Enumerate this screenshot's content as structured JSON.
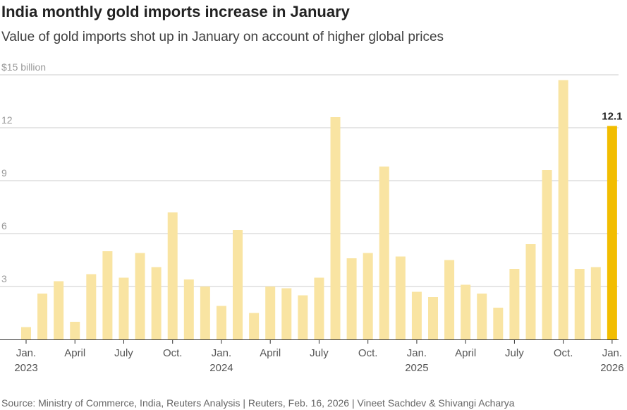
{
  "header": {
    "title": "India monthly gold imports increase in January",
    "subtitle": "Value of gold imports shot up in January on account of higher global prices"
  },
  "chart_data": {
    "type": "bar",
    "title": "India monthly gold imports increase in January",
    "subtitle": "Value of gold imports shot up in January on account of higher global prices",
    "unit_label": "$15 billion",
    "ylim": [
      0,
      15
    ],
    "yticks": [
      {
        "value": 15,
        "label": "$15 billion"
      },
      {
        "value": 12,
        "label": "12"
      },
      {
        "value": 9,
        "label": "9"
      },
      {
        "value": 6,
        "label": "6"
      },
      {
        "value": 3,
        "label": "3"
      }
    ],
    "grid": true,
    "categories": [
      "2023-01",
      "2023-02",
      "2023-03",
      "2023-04",
      "2023-05",
      "2023-06",
      "2023-07",
      "2023-08",
      "2023-09",
      "2023-10",
      "2023-11",
      "2023-12",
      "2024-01",
      "2024-02",
      "2024-03",
      "2024-04",
      "2024-05",
      "2024-06",
      "2024-07",
      "2024-08",
      "2024-09",
      "2024-10",
      "2024-11",
      "2024-12",
      "2025-01",
      "2025-02",
      "2025-03",
      "2025-04",
      "2025-05",
      "2025-06",
      "2025-07",
      "2025-08",
      "2025-09",
      "2025-10",
      "2025-11",
      "2025-12",
      "2026-01"
    ],
    "values": [
      0.7,
      2.6,
      3.3,
      1.0,
      3.7,
      5.0,
      3.5,
      4.9,
      4.1,
      7.2,
      3.4,
      3.0,
      1.9,
      6.2,
      1.5,
      3.0,
      2.9,
      2.5,
      3.5,
      12.6,
      4.6,
      4.9,
      9.8,
      4.7,
      2.7,
      2.4,
      4.5,
      3.1,
      2.6,
      1.8,
      4.0,
      5.4,
      9.6,
      14.7,
      4.0,
      4.1,
      12.1
    ],
    "xtick_labels": [
      {
        "index": 0,
        "lines": [
          "Jan.",
          "2023"
        ]
      },
      {
        "index": 3,
        "lines": [
          "April"
        ]
      },
      {
        "index": 6,
        "lines": [
          "July"
        ]
      },
      {
        "index": 9,
        "lines": [
          "Oct."
        ]
      },
      {
        "index": 12,
        "lines": [
          "Jan.",
          "2024"
        ]
      },
      {
        "index": 15,
        "lines": [
          "April"
        ]
      },
      {
        "index": 18,
        "lines": [
          "July"
        ]
      },
      {
        "index": 21,
        "lines": [
          "Oct."
        ]
      },
      {
        "index": 24,
        "lines": [
          "Jan.",
          "2025"
        ]
      },
      {
        "index": 27,
        "lines": [
          "April"
        ]
      },
      {
        "index": 30,
        "lines": [
          "July"
        ]
      },
      {
        "index": 33,
        "lines": [
          "Oct."
        ]
      },
      {
        "index": 36,
        "lines": [
          "Jan.",
          "2026"
        ]
      }
    ],
    "highlight_index": 36,
    "data_labels": [
      {
        "index": 36,
        "text": "12.1"
      }
    ],
    "colors": {
      "bar": "#f9e4a2",
      "highlight": "#f2bd00",
      "grid": "#cccccc",
      "axis": "#333333"
    }
  },
  "footer": {
    "source": "Source: Ministry of Commerce, India, Reuters Analysis | Reuters, Feb. 16, 2026 | Vineet Sachdev & Shivangi Acharya"
  }
}
